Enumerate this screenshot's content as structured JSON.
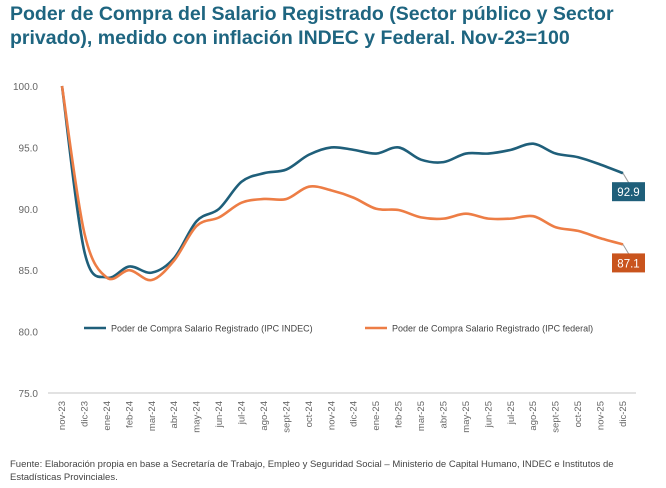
{
  "chart_data": {
    "type": "line",
    "title": "Poder de Compra del Salario Registrado (Sector público y Sector privado), medido con inflación INDEC y Federal. Nov-23=100",
    "xlabel": "",
    "ylabel": "",
    "ylim": [
      75,
      100
    ],
    "yticks": [
      "75.0",
      "80.0",
      "85.0",
      "90.0",
      "95.0",
      "100.0"
    ],
    "grid": false,
    "legend": "center",
    "categories": [
      "nov-23",
      "dic-23",
      "ene-24",
      "feb-24",
      "mar-24",
      "abr-24",
      "may-24",
      "jun-24",
      "jul-24",
      "ago-24",
      "sept-24",
      "oct-24",
      "nov-24",
      "dic-24",
      "ene-25",
      "feb-25",
      "mar-25",
      "abr-25",
      "may-25",
      "jun-25",
      "jul-25",
      "ago-25",
      "sept-25",
      "oct-25",
      "nov-25",
      "dic-25"
    ],
    "series": [
      {
        "name": "Poder de Compra Salario Registrado (IPC INDEC)",
        "color": "#1f5f7a",
        "end_label": "92.9",
        "values": [
          100,
          86.5,
          84.4,
          85.3,
          84.8,
          86.0,
          89.0,
          90.0,
          92.2,
          92.9,
          93.2,
          94.4,
          95.0,
          94.8,
          94.5,
          95.0,
          94.0,
          93.8,
          94.5,
          94.5,
          94.8,
          95.3,
          94.5,
          94.2,
          93.6,
          92.9
        ]
      },
      {
        "name": "Poder de Compra Salario Registrado (IPC federal)",
        "color": "#ed7d45",
        "end_label_color": "#c9541d",
        "end_label": "87.1",
        "values": [
          100,
          88.0,
          84.4,
          85.0,
          84.2,
          85.8,
          88.6,
          89.3,
          90.5,
          90.8,
          90.8,
          91.8,
          91.5,
          90.9,
          90.0,
          89.9,
          89.3,
          89.2,
          89.6,
          89.2,
          89.2,
          89.4,
          88.5,
          88.2,
          87.6,
          87.1
        ]
      }
    ]
  },
  "footer": "Fuente: Elaboración propia en base a Secretaría de Trabajo, Empleo y Seguridad Social – Ministerio de Capital Humano, INDEC e Institutos de Estadísticas Provinciales."
}
